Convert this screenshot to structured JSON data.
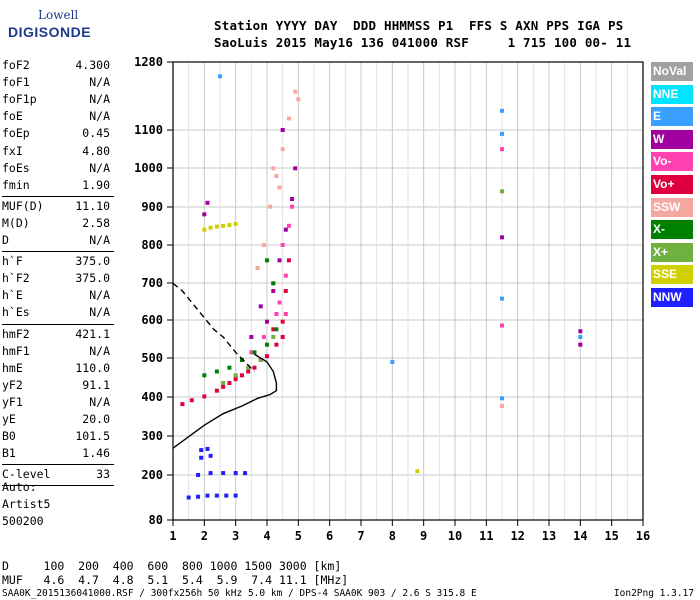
{
  "logo": {
    "line1": "Lowell",
    "line2": "DIGISONDE"
  },
  "header": {
    "line1": "Station YYYY DAY  DDD HHMMSS P1  FFS S AXN PPS IGA PS",
    "line2": "SaoLuis 2015 May16 136 041000 RSF     1 715 100 00- 11"
  },
  "params": [
    {
      "k": "foF2",
      "v": "4.300"
    },
    {
      "k": "foF1",
      "v": "N/A"
    },
    {
      "k": "foF1p",
      "v": "N/A"
    },
    {
      "k": "foE",
      "v": "N/A"
    },
    {
      "k": "foEp",
      "v": "0.45"
    },
    {
      "k": "fxI",
      "v": "4.80"
    },
    {
      "k": "foEs",
      "v": "N/A"
    },
    {
      "k": "fmin",
      "v": "1.90"
    },
    {
      "k": "MUF(D)",
      "v": "11.10"
    },
    {
      "k": "M(D)",
      "v": "2.58"
    },
    {
      "k": "D",
      "v": "N/A"
    },
    {
      "k": "h`F",
      "v": "375.0"
    },
    {
      "k": "h`F2",
      "v": "375.0"
    },
    {
      "k": "h`E",
      "v": "N/A"
    },
    {
      "k": "h`Es",
      "v": "N/A"
    },
    {
      "k": "hmF2",
      "v": "421.1"
    },
    {
      "k": "hmF1",
      "v": "N/A"
    },
    {
      "k": "hmE",
      "v": "110.0"
    },
    {
      "k": "yF2",
      "v": "91.1"
    },
    {
      "k": "yF1",
      "v": "N/A"
    },
    {
      "k": "yE",
      "v": "20.0"
    },
    {
      "k": "B0",
      "v": "101.5"
    },
    {
      "k": "B1",
      "v": "1.46"
    },
    {
      "k": "C-level",
      "v": "33"
    }
  ],
  "auto": {
    "label": "Auto:",
    "artist": "Artist5",
    "version": "500200"
  },
  "legend": [
    {
      "label": "NoVal",
      "color": "#a0a0a0"
    },
    {
      "label": "NNE",
      "color": "#00e5ff"
    },
    {
      "label": "E",
      "color": "#3aa0ff"
    },
    {
      "label": "W",
      "color": "#a000a0"
    },
    {
      "label": "Vo-",
      "color": "#ff40b0"
    },
    {
      "label": "Vo+",
      "color": "#e00040"
    },
    {
      "label": "SSW",
      "color": "#f5a8a0"
    },
    {
      "label": "X-",
      "color": "#008000"
    },
    {
      "label": "X+",
      "color": "#70b040"
    },
    {
      "label": "SSE",
      "color": "#d0d000"
    },
    {
      "label": "NNW",
      "color": "#2020ff"
    }
  ],
  "muf_table": {
    "row1": "D     100  200  400  600  800 1000 1500 3000 [km]",
    "row2": "MUF   4.6  4.7  4.8  5.1  5.4  5.9  7.4 11.1 [MHz]"
  },
  "footer": {
    "left": "SAA0K_2015136041000.RSF / 300fx256h 50 kHz 5.0 km / DPS-4 SAA0K 903 / 2.6 S 315.8 E",
    "right": "Ion2Png 1.3.17"
  },
  "chart_data": {
    "type": "scatter",
    "xlim": [
      1,
      16
    ],
    "ylim": [
      80,
      1280
    ],
    "x_ticks": [
      1,
      2,
      3,
      4,
      5,
      6,
      7,
      8,
      9,
      10,
      11,
      12,
      13,
      14,
      15,
      16
    ],
    "y_ticks": [
      80,
      200,
      300,
      400,
      500,
      600,
      700,
      800,
      900,
      1000,
      1100,
      1280
    ],
    "grid": true,
    "series": [
      {
        "color": "#e00040",
        "points": [
          [
            1.3,
            385
          ],
          [
            1.6,
            395
          ],
          [
            2.0,
            405
          ],
          [
            2.4,
            420
          ],
          [
            2.8,
            440
          ],
          [
            3.2,
            460
          ],
          [
            3.6,
            480
          ],
          [
            4.0,
            510
          ],
          [
            4.3,
            540
          ],
          [
            4.5,
            600
          ],
          [
            4.6,
            680
          ],
          [
            4.7,
            760
          ],
          [
            4.5,
            560
          ],
          [
            3.0,
            450
          ],
          [
            3.8,
            500
          ],
          [
            4.2,
            580
          ],
          [
            2.6,
            430
          ],
          [
            3.4,
            470
          ]
        ]
      },
      {
        "color": "#ff40b0",
        "points": [
          [
            4.4,
            650
          ],
          [
            4.6,
            720
          ],
          [
            4.5,
            800
          ],
          [
            4.3,
            620
          ],
          [
            4.7,
            850
          ],
          [
            4.8,
            900
          ],
          [
            4.2,
            700
          ],
          [
            3.9,
            560
          ],
          [
            4.6,
            620
          ],
          [
            3.5,
            520
          ],
          [
            11.5,
            1050
          ],
          [
            11.5,
            590
          ]
        ]
      },
      {
        "color": "#a000a0",
        "points": [
          [
            4.0,
            600
          ],
          [
            4.2,
            680
          ],
          [
            4.4,
            760
          ],
          [
            4.6,
            840
          ],
          [
            4.8,
            920
          ],
          [
            4.9,
            1000
          ],
          [
            4.5,
            1100
          ],
          [
            3.5,
            560
          ],
          [
            3.8,
            640
          ],
          [
            2.0,
            880
          ],
          [
            2.1,
            910
          ],
          [
            11.5,
            820
          ],
          [
            14.0,
            540
          ],
          [
            14.0,
            575
          ]
        ]
      },
      {
        "color": "#f5a8a0",
        "points": [
          [
            3.9,
            800
          ],
          [
            4.1,
            900
          ],
          [
            4.3,
            980
          ],
          [
            4.5,
            1050
          ],
          [
            4.7,
            1130
          ],
          [
            4.9,
            1200
          ],
          [
            5.0,
            1180
          ],
          [
            4.2,
            1000
          ],
          [
            3.7,
            740
          ],
          [
            4.4,
            950
          ],
          [
            11.5,
            380
          ]
        ]
      },
      {
        "color": "#d0d000",
        "points": [
          [
            2.0,
            840
          ],
          [
            2.2,
            845
          ],
          [
            2.4,
            848
          ],
          [
            2.6,
            850
          ],
          [
            2.8,
            852
          ],
          [
            3.0,
            855
          ],
          [
            8.8,
            210
          ]
        ]
      },
      {
        "color": "#008000",
        "points": [
          [
            2.0,
            460
          ],
          [
            2.4,
            470
          ],
          [
            2.8,
            480
          ],
          [
            3.2,
            500
          ],
          [
            3.6,
            520
          ],
          [
            4.0,
            540
          ],
          [
            4.3,
            580
          ],
          [
            4.2,
            700
          ],
          [
            4.0,
            760
          ]
        ]
      },
      {
        "color": "#70b040",
        "points": [
          [
            2.6,
            440
          ],
          [
            3.0,
            460
          ],
          [
            3.4,
            480
          ],
          [
            3.8,
            500
          ],
          [
            4.2,
            560
          ],
          [
            11.5,
            940
          ]
        ]
      },
      {
        "color": "#2020ff",
        "points": [
          [
            1.5,
            140
          ],
          [
            1.8,
            142
          ],
          [
            2.1,
            145
          ],
          [
            2.4,
            145
          ],
          [
            2.7,
            145
          ],
          [
            3.0,
            145
          ],
          [
            1.8,
            200
          ],
          [
            2.2,
            205
          ],
          [
            2.6,
            205
          ],
          [
            3.0,
            205
          ],
          [
            3.3,
            205
          ],
          [
            1.9,
            245
          ],
          [
            2.2,
            250
          ],
          [
            1.9,
            265
          ],
          [
            2.1,
            268
          ]
        ]
      },
      {
        "color": "#3aa0ff",
        "points": [
          [
            11.5,
            1150
          ],
          [
            11.5,
            1090
          ],
          [
            11.5,
            660
          ],
          [
            11.5,
            400
          ],
          [
            8.0,
            495
          ],
          [
            14.0,
            560
          ],
          [
            2.5,
            1240
          ]
        ]
      }
    ],
    "profile_solid": [
      [
        1,
        270
      ],
      [
        1.5,
        300
      ],
      [
        2.0,
        330
      ],
      [
        2.6,
        360
      ],
      [
        3.2,
        380
      ],
      [
        3.7,
        400
      ],
      [
        4.1,
        410
      ],
      [
        4.3,
        420
      ],
      [
        4.3,
        440
      ],
      [
        4.2,
        470
      ],
      [
        4.0,
        495
      ],
      [
        3.6,
        515
      ]
    ],
    "profile_dashed": [
      [
        1,
        700
      ],
      [
        1.3,
        680
      ],
      [
        1.6,
        650
      ],
      [
        1.9,
        620
      ],
      [
        2.3,
        580
      ],
      [
        2.6,
        560
      ],
      [
        2.8,
        540
      ],
      [
        3.0,
        520
      ],
      [
        3.3,
        495
      ],
      [
        3.6,
        470
      ]
    ]
  }
}
